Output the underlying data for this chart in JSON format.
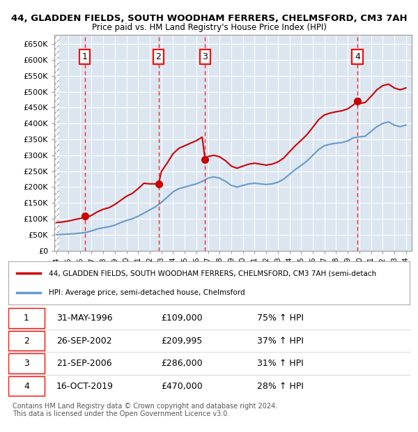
{
  "title1": "44, GLADDEN FIELDS, SOUTH WOODHAM FERRERS, CHELMSFORD, CM3 7AH",
  "title2": "Price paid vs. HM Land Registry's House Price Index (HPI)",
  "background_color": "#dce6f1",
  "plot_bg": "#dce6f1",
  "red_line_color": "#cc0000",
  "blue_line_color": "#6699cc",
  "sale_prices": [
    109000,
    209995,
    286000,
    470000
  ],
  "sale_labels": [
    "1",
    "2",
    "3",
    "4"
  ],
  "sale_year_nums": [
    1996.417,
    2002.75,
    2006.75,
    2019.833
  ],
  "legend_line1": "44, GLADDEN FIELDS, SOUTH WOODHAM FERRERS, CHELMSFORD, CM3 7AH (semi-detach",
  "legend_line2": "HPI: Average price, semi-detached house, Chelmsford",
  "table_data": [
    [
      "1",
      "31-MAY-1996",
      "£109,000",
      "75% ↑ HPI"
    ],
    [
      "2",
      "26-SEP-2002",
      "£209,995",
      "37% ↑ HPI"
    ],
    [
      "3",
      "21-SEP-2006",
      "£286,000",
      "31% ↑ HPI"
    ],
    [
      "4",
      "16-OCT-2019",
      "£470,000",
      "28% ↑ HPI"
    ]
  ],
  "footnote": "Contains HM Land Registry data © Crown copyright and database right 2024.\nThis data is licensed under the Open Government Licence v3.0.",
  "ylim": [
    0,
    680000
  ],
  "yticks": [
    0,
    50000,
    100000,
    150000,
    200000,
    250000,
    300000,
    350000,
    400000,
    450000,
    500000,
    550000,
    600000,
    650000
  ],
  "ytick_labels": [
    "£0",
    "£50K",
    "£100K",
    "£150K",
    "£200K",
    "£250K",
    "£300K",
    "£350K",
    "£400K",
    "£450K",
    "£500K",
    "£550K",
    "£600K",
    "£650K"
  ]
}
